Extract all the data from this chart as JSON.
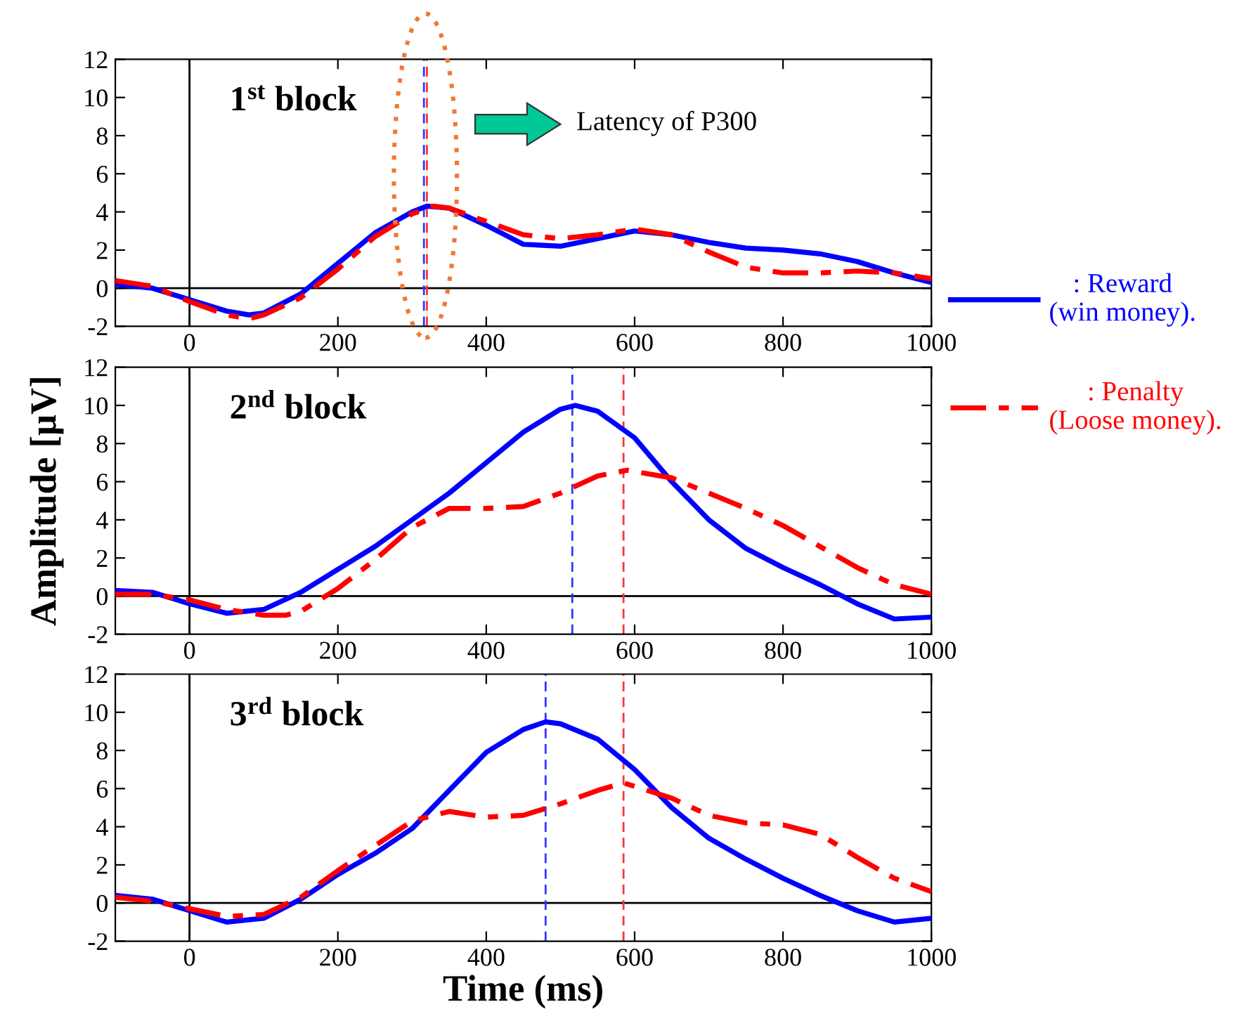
{
  "chart_data": [
    {
      "type": "line",
      "xlim": [
        -100,
        1000
      ],
      "ylim": [
        -2,
        12
      ],
      "xticks": [
        0,
        200,
        400,
        600,
        800,
        1000
      ],
      "yticks": [
        -2,
        0,
        2,
        4,
        6,
        8,
        10,
        12
      ],
      "grid": false,
      "legend": false,
      "annotations": [
        "1$^{st}$ block",
        "Latency of P300"
      ],
      "ref_lines": [
        {
          "axis": "x",
          "value": 0,
          "color": "#000000",
          "line_style": "solid"
        },
        {
          "axis": "y",
          "value": 0,
          "color": "#000000",
          "line_style": "solid"
        },
        {
          "axis": "x",
          "value": 316,
          "color": "#3333ff",
          "line_style": "dashed"
        },
        {
          "axis": "x",
          "value": 320,
          "color": "#ff3333",
          "line_style": "dashed"
        }
      ],
      "series": [
        {
          "color": "#0000ff",
          "line_style": "solid",
          "x": [
            -100,
            -50,
            0,
            50,
            80,
            100,
            150,
            200,
            250,
            300,
            320,
            350,
            400,
            450,
            500,
            550,
            600,
            650,
            700,
            750,
            800,
            850,
            900,
            950,
            1000
          ],
          "values": [
            0.2,
            0.0,
            -0.6,
            -1.2,
            -1.4,
            -1.3,
            -0.3,
            1.3,
            2.9,
            4.0,
            4.3,
            4.2,
            3.3,
            2.3,
            2.2,
            2.6,
            3.0,
            2.8,
            2.4,
            2.1,
            2.0,
            1.8,
            1.4,
            0.8,
            0.3
          ]
        },
        {
          "color": "#ff0000",
          "line_style": "dashdot",
          "x": [
            -100,
            -50,
            0,
            50,
            80,
            100,
            150,
            200,
            250,
            300,
            330,
            350,
            400,
            450,
            500,
            550,
            600,
            650,
            700,
            750,
            800,
            850,
            900,
            950,
            1000
          ],
          "values": [
            0.4,
            0.1,
            -0.7,
            -1.4,
            -1.6,
            -1.4,
            -0.5,
            1.0,
            2.7,
            3.9,
            4.3,
            4.2,
            3.5,
            2.8,
            2.6,
            2.8,
            3.1,
            2.8,
            1.9,
            1.1,
            0.8,
            0.8,
            0.9,
            0.8,
            0.5
          ]
        }
      ]
    },
    {
      "type": "line",
      "xlim": [
        -100,
        1000
      ],
      "ylim": [
        -2,
        12
      ],
      "xticks": [
        0,
        200,
        400,
        600,
        800,
        1000
      ],
      "yticks": [
        -2,
        0,
        2,
        4,
        6,
        8,
        10,
        12
      ],
      "grid": false,
      "legend": "right",
      "ylabel": "Amplitude [μV]",
      "annotations": [
        "2$^{nd}$ block"
      ],
      "ref_lines": [
        {
          "axis": "x",
          "value": 0,
          "color": "#000000",
          "line_style": "solid"
        },
        {
          "axis": "y",
          "value": 0,
          "color": "#000000",
          "line_style": "solid"
        },
        {
          "axis": "x",
          "value": 516,
          "color": "#3333ff",
          "line_style": "dashed"
        },
        {
          "axis": "x",
          "value": 585,
          "color": "#ff3333",
          "line_style": "dashed"
        }
      ],
      "series": [
        {
          "name": ": Reward\n(win money).",
          "color": "#0000ff",
          "line_style": "solid",
          "x": [
            -100,
            -50,
            0,
            50,
            100,
            150,
            200,
            250,
            300,
            350,
            400,
            450,
            500,
            520,
            550,
            600,
            650,
            700,
            750,
            800,
            850,
            900,
            950,
            1000
          ],
          "values": [
            0.3,
            0.2,
            -0.4,
            -0.9,
            -0.7,
            0.2,
            1.4,
            2.6,
            4.0,
            5.4,
            7.0,
            8.6,
            9.8,
            10.0,
            9.7,
            8.3,
            6.0,
            4.0,
            2.5,
            1.5,
            0.6,
            -0.4,
            -1.2,
            -1.1
          ]
        },
        {
          "name": ": Penalty\n(Loose money).",
          "color": "#ff0000",
          "line_style": "dashdot",
          "x": [
            -100,
            -50,
            0,
            50,
            100,
            130,
            150,
            200,
            250,
            300,
            350,
            400,
            450,
            500,
            550,
            590,
            650,
            700,
            750,
            800,
            850,
            900,
            950,
            1000
          ],
          "values": [
            0.1,
            0.1,
            -0.2,
            -0.7,
            -1.0,
            -1.0,
            -0.8,
            0.4,
            1.9,
            3.6,
            4.6,
            4.6,
            4.7,
            5.4,
            6.3,
            6.6,
            6.2,
            5.4,
            4.6,
            3.7,
            2.6,
            1.5,
            0.6,
            0.1
          ]
        }
      ]
    },
    {
      "type": "line",
      "xlim": [
        -100,
        1000
      ],
      "ylim": [
        -2,
        12
      ],
      "xticks": [
        0,
        200,
        400,
        600,
        800,
        1000
      ],
      "yticks": [
        -2,
        0,
        2,
        4,
        6,
        8,
        10,
        12
      ],
      "grid": false,
      "legend": false,
      "xlabel": "Time (ms)",
      "annotations": [
        "3$^{rd}$ block"
      ],
      "ref_lines": [
        {
          "axis": "x",
          "value": 0,
          "color": "#000000",
          "line_style": "solid"
        },
        {
          "axis": "y",
          "value": 0,
          "color": "#000000",
          "line_style": "solid"
        },
        {
          "axis": "x",
          "value": 480,
          "color": "#3333ff",
          "line_style": "dashed"
        },
        {
          "axis": "x",
          "value": 585,
          "color": "#ff3333",
          "line_style": "dashed"
        }
      ],
      "series": [
        {
          "color": "#0000ff",
          "line_style": "solid",
          "x": [
            -100,
            -50,
            0,
            50,
            100,
            150,
            200,
            250,
            300,
            350,
            400,
            450,
            480,
            500,
            550,
            600,
            650,
            700,
            750,
            800,
            850,
            900,
            950,
            1000
          ],
          "values": [
            0.4,
            0.2,
            -0.4,
            -1.0,
            -0.8,
            0.2,
            1.5,
            2.6,
            3.9,
            5.9,
            7.9,
            9.1,
            9.5,
            9.4,
            8.6,
            7.0,
            5.0,
            3.4,
            2.3,
            1.3,
            0.4,
            -0.4,
            -1.0,
            -0.8
          ]
        },
        {
          "color": "#ff0000",
          "line_style": "dashdot",
          "x": [
            -100,
            -50,
            0,
            50,
            100,
            150,
            200,
            250,
            300,
            350,
            400,
            450,
            500,
            550,
            585,
            650,
            700,
            750,
            800,
            850,
            900,
            950,
            1000
          ],
          "values": [
            0.3,
            0.1,
            -0.3,
            -0.7,
            -0.6,
            0.3,
            1.7,
            3.0,
            4.3,
            4.8,
            4.5,
            4.6,
            5.2,
            5.9,
            6.3,
            5.5,
            4.6,
            4.2,
            4.1,
            3.6,
            2.4,
            1.3,
            0.6
          ]
        }
      ]
    }
  ]
}
